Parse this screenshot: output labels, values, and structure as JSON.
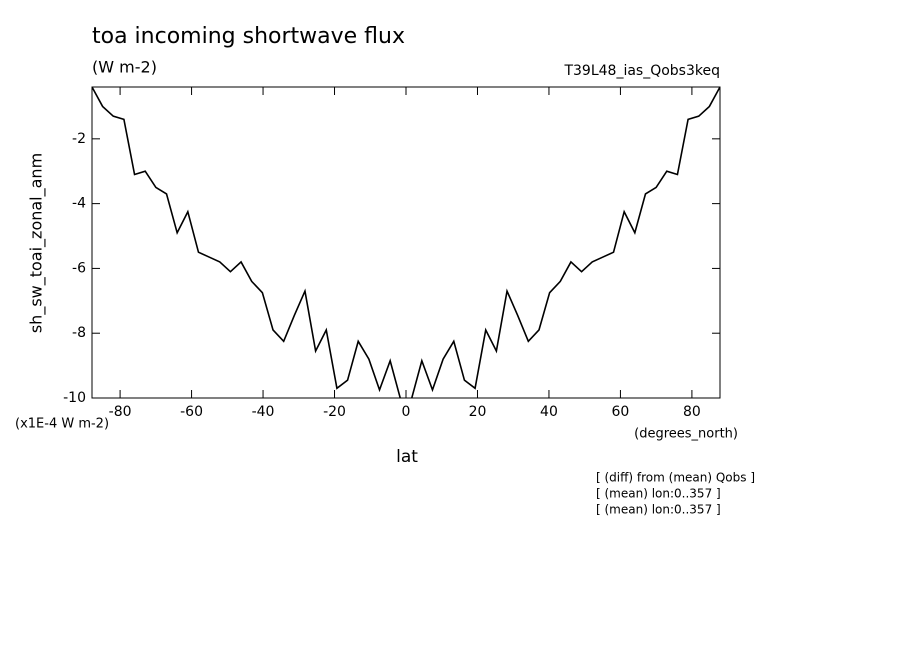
{
  "chart_data": {
    "type": "line",
    "title": "toa incoming shortwave flux",
    "subtitle": "(W m-2)",
    "run_label": "T39L48_ias_Qobs3keq",
    "y_label": "sh_sw_toai_zonal_anm",
    "y_units": "(x1E-4 W m-2)",
    "x_label": "lat",
    "x_units": "(degrees_north)",
    "notes": [
      "[ (diff) from (mean) Qobs ]",
      "[ (mean) lon:0..357 ]",
      "[ (mean) lon:0..357 ]"
    ],
    "xlim": [
      -87.86,
      87.86
    ],
    "ylim": [
      -10,
      -0.4
    ],
    "xticks": [
      -80,
      -60,
      -40,
      -20,
      0,
      20,
      40,
      60,
      80
    ],
    "yticks": [
      -2,
      -4,
      -6,
      -8,
      -10
    ],
    "x": [
      -87.86,
      -84.89,
      -81.91,
      -78.93,
      -75.95,
      -72.97,
      -69.99,
      -67.01,
      -64.03,
      -61.05,
      -58.07,
      -55.09,
      -52.11,
      -49.13,
      -46.15,
      -43.17,
      -40.19,
      -37.21,
      -34.23,
      -31.25,
      -28.27,
      -25.29,
      -22.31,
      -19.33,
      -16.35,
      -13.37,
      -10.39,
      -7.41,
      -4.43,
      -1.49,
      1.49,
      4.43,
      7.41,
      10.39,
      13.37,
      16.35,
      19.33,
      22.31,
      25.29,
      28.27,
      31.25,
      34.23,
      37.21,
      40.19,
      43.17,
      46.15,
      49.13,
      52.11,
      55.09,
      58.07,
      61.05,
      64.03,
      67.01,
      69.99,
      72.97,
      75.95,
      78.93,
      81.91,
      84.89,
      87.86
    ],
    "series": [
      {
        "name": "sh_sw_toai_zonal_anm",
        "color": "#000000",
        "values": [
          -0.4,
          -1.0,
          -1.3,
          -1.4,
          -3.1,
          -3.0,
          -3.5,
          -3.7,
          -4.9,
          -4.25,
          -5.5,
          -5.65,
          -5.8,
          -6.1,
          -5.8,
          -6.4,
          -6.75,
          -7.9,
          -8.25,
          -7.45,
          -6.7,
          -8.55,
          -7.9,
          -9.7,
          -9.45,
          -8.25,
          -8.8,
          -9.75,
          -8.85,
          -10.05,
          -10.05,
          -8.85,
          -9.75,
          -8.8,
          -8.25,
          -9.45,
          -9.7,
          -7.9,
          -8.55,
          -6.7,
          -7.45,
          -8.25,
          -7.9,
          -6.75,
          -6.4,
          -5.8,
          -6.1,
          -5.8,
          -5.65,
          -5.5,
          -4.25,
          -4.9,
          -3.7,
          -3.5,
          -3.0,
          -3.1,
          -1.4,
          -1.3,
          -1.0,
          -0.4
        ]
      }
    ]
  }
}
